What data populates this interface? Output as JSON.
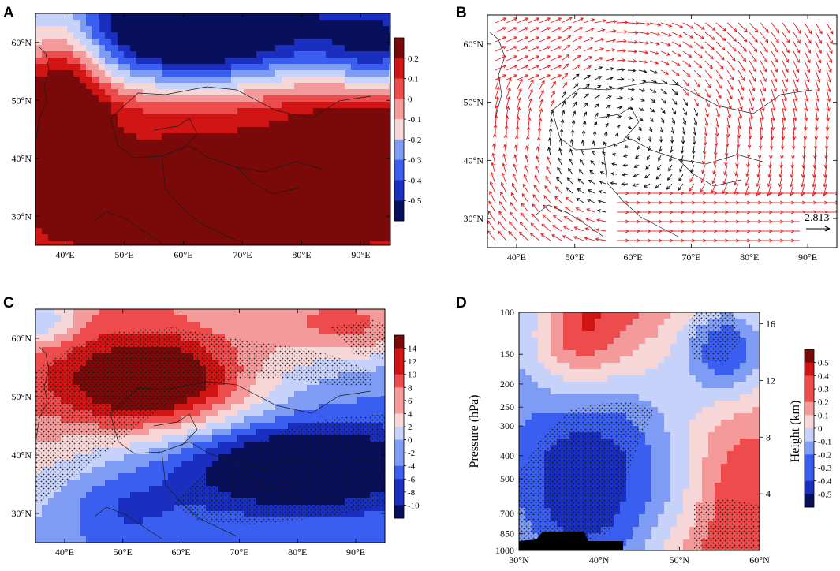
{
  "chart_data": [
    {
      "panel": "A",
      "type": "heatmap",
      "title": "",
      "x_ticks": [
        "40°E",
        "50°E",
        "60°E",
        "70°E",
        "80°E",
        "90°E"
      ],
      "y_ticks": [
        "30°N",
        "40°N",
        "50°N",
        "60°N"
      ],
      "xlim": [
        35,
        95
      ],
      "ylim": [
        25,
        65
      ],
      "colorbar": [
        "0.2",
        "0.1",
        "0",
        "-0.1",
        "-0.2",
        "-0.3",
        "-0.4",
        "-0.5"
      ],
      "value_range": [
        -0.55,
        0.3
      ],
      "features": [
        {
          "lon": 62,
          "lat": 61,
          "amp": -0.6,
          "rx": 22,
          "ry": 9
        },
        {
          "lon": 93,
          "lat": 59,
          "amp": -0.35,
          "rx": 10,
          "ry": 7
        },
        {
          "lon": 40,
          "lat": 52,
          "amp": 0.35,
          "rx": 7,
          "ry": 16
        },
        {
          "lon": 66,
          "lat": 34,
          "amp": 0.45,
          "rx": 18,
          "ry": 7
        },
        {
          "lon": 90,
          "lat": 40,
          "amp": 0.2,
          "rx": 14,
          "ry": 10
        }
      ]
    },
    {
      "panel": "B",
      "type": "vector",
      "title": "",
      "x_ticks": [
        "40°E",
        "50°E",
        "60°E",
        "70°E",
        "80°E",
        "90°E"
      ],
      "y_ticks": [
        "30°N",
        "40°N",
        "50°N",
        "60°N"
      ],
      "xlim": [
        35,
        95
      ],
      "ylim": [
        25,
        65
      ],
      "reference_vector": "2.813",
      "colors": {
        "significant": "#e31a1c",
        "other": "#111111"
      }
    },
    {
      "panel": "C",
      "type": "heatmap",
      "title": "",
      "x_ticks": [
        "40°E",
        "50°E",
        "60°E",
        "70°E",
        "80°E",
        "90°E"
      ],
      "y_ticks": [
        "30°N",
        "40°N",
        "50°N",
        "60°N"
      ],
      "xlim": [
        35,
        95
      ],
      "ylim": [
        25,
        65
      ],
      "colorbar": [
        "14",
        "12",
        "10",
        "8",
        "6",
        "4",
        "2",
        "0",
        "-2",
        "-4",
        "-6",
        "-8",
        "-10"
      ],
      "value_range": [
        -12,
        16
      ],
      "stippled": true,
      "features": [
        {
          "lon": 56,
          "lat": 52,
          "amp": 16,
          "rx": 16,
          "ry": 8
        },
        {
          "lon": 90,
          "lat": 62,
          "amp": 9,
          "rx": 14,
          "ry": 6
        },
        {
          "lon": 80,
          "lat": 38,
          "amp": -13,
          "rx": 20,
          "ry": 7
        },
        {
          "lon": 36,
          "lat": 63,
          "amp": -8,
          "rx": 6,
          "ry": 4
        },
        {
          "lon": 50,
          "lat": 31,
          "amp": -4,
          "rx": 10,
          "ry": 6
        }
      ]
    },
    {
      "panel": "D",
      "type": "heatmap",
      "title": "",
      "xlabel": "",
      "ylabel": "Pressure (hPa)",
      "ylabel_right": "Height (km)",
      "x_ticks": [
        "30°N",
        "40°N",
        "50°N",
        "60°N"
      ],
      "y_ticks": [
        "100",
        "150",
        "200",
        "250",
        "300",
        "400",
        "500",
        "700",
        "850",
        "1000"
      ],
      "y_ticks_right": [
        "16",
        "12",
        "8",
        "4"
      ],
      "xlim": [
        30,
        60
      ],
      "ylim": [
        1000,
        100
      ],
      "colorbar": [
        "0.5",
        "0.4",
        "0.3",
        "0.2",
        "0.1",
        "0",
        "-0.1",
        "-0.2",
        "-0.3",
        "-0.4",
        "-0.5"
      ],
      "value_range": [
        -0.6,
        0.6
      ],
      "stippled": true,
      "features": [
        {
          "lat": 37,
          "p": 130,
          "amp": 0.45,
          "rx": 6,
          "ry": 0.55
        },
        {
          "lat": 56,
          "p": 140,
          "amp": -0.55,
          "rx": 6,
          "ry": 0.5
        },
        {
          "lat": 38,
          "p": 700,
          "amp": -0.6,
          "rx": 12,
          "ry": 1.2
        },
        {
          "lat": 58,
          "p": 800,
          "amp": 0.55,
          "rx": 8,
          "ry": 1.1
        }
      ]
    }
  ]
}
